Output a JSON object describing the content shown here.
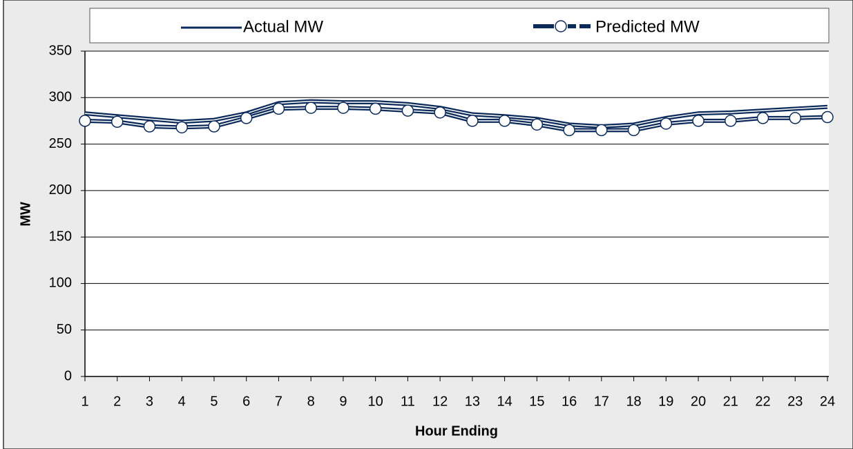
{
  "chart_data": {
    "type": "line",
    "x_label": "Hour Ending",
    "y_label": "MW",
    "x": [
      1,
      2,
      3,
      4,
      5,
      6,
      7,
      8,
      9,
      10,
      11,
      12,
      13,
      14,
      15,
      16,
      17,
      18,
      19,
      20,
      21,
      22,
      23,
      24
    ],
    "series": [
      {
        "name": "Actual MW",
        "color": "#0b2a5a",
        "marker": false,
        "values": [
          283,
          280,
          277,
          274,
          276,
          283,
          294,
          296,
          295,
          295,
          293,
          289,
          282,
          280,
          277,
          271,
          269,
          271,
          278,
          283,
          284,
          286,
          288,
          290
        ]
      },
      {
        "name": "Predicted MW",
        "color": "#0b2a5a",
        "marker": true,
        "values": [
          275,
          274,
          269,
          268,
          269,
          278,
          288,
          289,
          289,
          288,
          286,
          284,
          275,
          275,
          271,
          265,
          265,
          265,
          272,
          275,
          275,
          278,
          278,
          279
        ]
      }
    ],
    "xlim": [
      1,
      24
    ],
    "xticks": [
      1,
      2,
      3,
      4,
      5,
      6,
      7,
      8,
      9,
      10,
      11,
      12,
      13,
      14,
      15,
      16,
      17,
      18,
      19,
      20,
      21,
      22,
      23,
      24
    ],
    "ylim": [
      0,
      350
    ],
    "yticks": [
      0,
      50,
      100,
      150,
      200,
      250,
      300,
      350
    ],
    "grid": true,
    "legend": "top"
  }
}
